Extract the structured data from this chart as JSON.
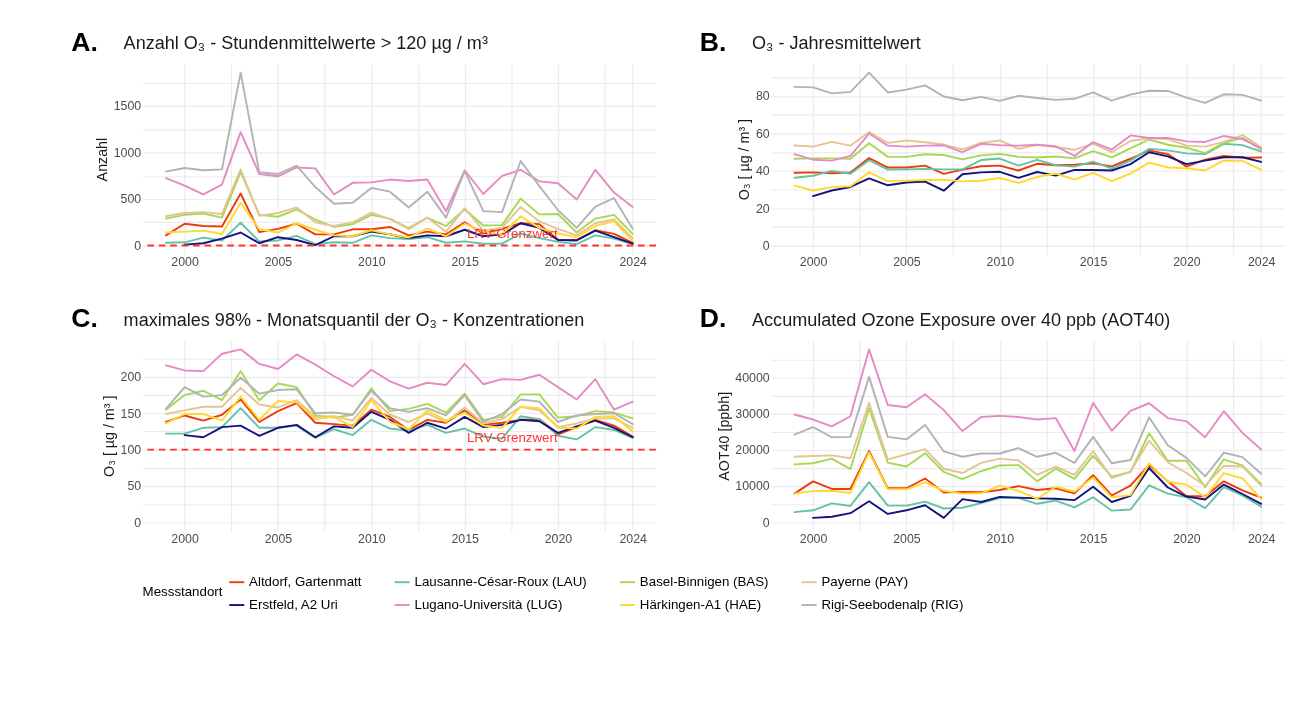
{
  "chart_data": [
    {
      "type": "line",
      "title": "Anzahl O₃ - Stundenmittelwerte > 120 µg / m³",
      "ylabel": "Anzahl",
      "annotations": [
        "A."
      ],
      "grid": true,
      "legend": "bottom",
      "legend_title": "Messstandort",
      "xlim": [
        1997.75,
        2025.25
      ],
      "xticks": [
        2000,
        {
          "value": 2002.5,
          "label": null
        },
        2005,
        {
          "value": 2007.5,
          "label": null
        },
        2010,
        {
          "value": 2012.5,
          "label": null
        },
        2015,
        {
          "value": 2017.5,
          "label": null
        },
        2020,
        {
          "value": 2022.5,
          "label": null
        },
        2024
      ],
      "ylim": [
        -93,
        1953
      ],
      "yticks": [
        0,
        {
          "value": 250,
          "label": null
        },
        500,
        {
          "value": 750,
          "label": null
        },
        1000,
        {
          "value": 1250,
          "label": null
        },
        1500,
        {
          "value": 1750,
          "label": null
        }
      ],
      "ref_lines": [
        {
          "axis": "y",
          "value": 0,
          "label": "LRV-Grenzwert",
          "color": "#ff3333",
          "line_style": "dashed"
        }
      ],
      "x": [
        1999,
        2000,
        2001,
        2002,
        2003,
        2004,
        2005,
        2006,
        2007,
        2008,
        2009,
        2010,
        2011,
        2012,
        2013,
        2014,
        2015,
        2016,
        2017,
        2018,
        2019,
        2020,
        2021,
        2022,
        2023,
        2024
      ],
      "series": [
        {
          "name": "Altdorf, Gartenmatt",
          "color": "#ee3b0b",
          "values": [
            110,
            235,
            210,
            205,
            560,
            145,
            180,
            235,
            120,
            120,
            175,
            175,
            200,
            110,
            150,
            120,
            250,
            130,
            180,
            240,
            230,
            60,
            60,
            165,
            125,
            30
          ]
        },
        {
          "name": "Lausanne-César-Roux (LAU)",
          "color": "#66c2a5",
          "values": [
            30,
            35,
            85,
            55,
            245,
            45,
            55,
            105,
            15,
            35,
            30,
            110,
            80,
            70,
            90,
            30,
            45,
            20,
            20,
            130,
            80,
            40,
            15,
            110,
            75,
            15
          ]
        },
        {
          "name": "Basel-Binnigen (BAS)",
          "color": "#a6d854",
          "values": [
            290,
            330,
            345,
            300,
            790,
            330,
            310,
            390,
            280,
            200,
            230,
            330,
            290,
            180,
            300,
            210,
            390,
            215,
            220,
            505,
            335,
            340,
            140,
            290,
            330,
            125
          ]
        },
        {
          "name": "Payerne (PAY)",
          "color": "#e5c494",
          "values": [
            315,
            350,
            360,
            340,
            820,
            320,
            350,
            410,
            250,
            210,
            250,
            355,
            285,
            190,
            300,
            150,
            400,
            160,
            190,
            415,
            260,
            180,
            110,
            240,
            280,
            80
          ]
        },
        {
          "name": "Erstfeld, A2 Uri",
          "color": "#14147f",
          "values": [
            null,
            10,
            25,
            75,
            140,
            25,
            90,
            60,
            5,
            100,
            100,
            150,
            120,
            80,
            110,
            100,
            170,
            100,
            120,
            240,
            190,
            60,
            55,
            160,
            90,
            20
          ]
        },
        {
          "name": "Lugano-Università (LUG)",
          "color": "#e78ac3",
          "values": [
            725,
            645,
            550,
            655,
            1220,
            770,
            745,
            840,
            830,
            550,
            675,
            680,
            710,
            695,
            710,
            370,
            810,
            555,
            750,
            815,
            690,
            670,
            495,
            815,
            570,
            415
          ]
        },
        {
          "name": "Härkingen-A1 (HAE)",
          "color": "#ffd92f",
          "values": [
            140,
            150,
            160,
            125,
            460,
            175,
            140,
            240,
            170,
            110,
            100,
            165,
            120,
            85,
            185,
            100,
            235,
            150,
            120,
            315,
            190,
            130,
            90,
            210,
            260,
            50
          ]
        },
        {
          "name": "Rigi-Seebodenalp (RIG)",
          "color": "#b3b3b3",
          "values": [
            795,
            835,
            810,
            820,
            1860,
            790,
            770,
            860,
            630,
            450,
            460,
            620,
            580,
            410,
            580,
            300,
            800,
            370,
            360,
            910,
            640,
            380,
            190,
            420,
            510,
            180
          ]
        }
      ]
    },
    {
      "type": "line",
      "title": "O₃ - Jahresmittelwert",
      "ylabel": "O₃ [ µg / m³ ]",
      "annotations": [
        "B."
      ],
      "grid": true,
      "xlim": [
        1997.75,
        2025.25
      ],
      "xticks": [
        2000,
        {
          "value": 2002.5,
          "label": null
        },
        2005,
        {
          "value": 2007.5,
          "label": null
        },
        2010,
        {
          "value": 2012.5,
          "label": null
        },
        2015,
        {
          "value": 2017.5,
          "label": null
        },
        2020,
        {
          "value": 2022.5,
          "label": null
        },
        2024
      ],
      "ylim": [
        -4.6,
        97.2
      ],
      "yticks": [
        0,
        {
          "value": 10,
          "label": null
        },
        20,
        {
          "value": 30,
          "label": null
        },
        40,
        {
          "value": 50,
          "label": null
        },
        60,
        {
          "value": 70,
          "label": null
        },
        80,
        {
          "value": 90,
          "label": null
        }
      ],
      "x": [
        1999,
        2000,
        2001,
        2002,
        2003,
        2004,
        2005,
        2006,
        2007,
        2008,
        2009,
        2010,
        2011,
        2012,
        2013,
        2014,
        2015,
        2016,
        2017,
        2018,
        2019,
        2020,
        2021,
        2022,
        2023,
        2024
      ],
      "series": [
        {
          "name": "Altdorf, Gartenmatt",
          "color": "#ee3b0b",
          "values": [
            39,
            39.2,
            38.7,
            39.1,
            46.9,
            41.8,
            41.8,
            42.8,
            38.4,
            40.7,
            42.5,
            42.8,
            40.2,
            43.8,
            43,
            43.3,
            44,
            42.4,
            46.5,
            51,
            49,
            42.3,
            46,
            48,
            47.1,
            47.2
          ]
        },
        {
          "name": "Lausanne-César-Roux (LAU)",
          "color": "#66c2a5",
          "values": [
            36.3,
            37.4,
            40,
            38.5,
            45.7,
            40.7,
            40.8,
            41.1,
            40.8,
            40.8,
            45.8,
            46.6,
            42.8,
            45.9,
            43,
            42.3,
            45,
            41.2,
            45.5,
            51.8,
            51,
            49.4,
            49,
            54.5,
            53.8,
            50.3
          ]
        },
        {
          "name": "Basel-Binnigen (BAS)",
          "color": "#a6d854",
          "values": [
            46.5,
            46.7,
            46.7,
            46.5,
            54.8,
            47.5,
            47.5,
            48.9,
            48.5,
            46.2,
            48.3,
            49.1,
            47.5,
            47.2,
            47.7,
            46.7,
            50.6,
            47.2,
            52,
            56.8,
            54,
            52.4,
            49.5,
            55,
            57.7,
            51.5
          ]
        },
        {
          "name": "Payerne (PAY)",
          "color": "#e5c494",
          "values": [
            53.6,
            53,
            55.5,
            53.5,
            60.8,
            55,
            56.3,
            55.3,
            54.1,
            51.5,
            55,
            56.3,
            51.8,
            54,
            52.8,
            51.3,
            54.6,
            50,
            56,
            57.5,
            57,
            53.5,
            53,
            55.5,
            59.2,
            52.6
          ]
        },
        {
          "name": "Erstfeld, A2 Uri",
          "color": "#14147f",
          "values": [
            null,
            26.5,
            29.5,
            31.4,
            36,
            32.3,
            33.8,
            34.3,
            29.4,
            38.2,
            39.2,
            39.5,
            36.3,
            39.4,
            37.5,
            40.5,
            40.5,
            40.2,
            43.6,
            50,
            47.8,
            43.6,
            45.5,
            47.3,
            47.3,
            44.8
          ]
        },
        {
          "name": "Lugano-Università (LUG)",
          "color": "#e78ac3",
          "values": [
            49,
            46,
            45.5,
            48,
            60,
            53.5,
            53,
            53.5,
            53.7,
            50,
            54.5,
            53.8,
            53.5,
            54,
            53.2,
            48,
            55.4,
            51.4,
            59,
            57.6,
            57.7,
            55.8,
            55.5,
            58.7,
            57,
            52
          ]
        },
        {
          "name": "Härkingen-A1 (HAE)",
          "color": "#ffd92f",
          "values": [
            32.1,
            29.5,
            31.3,
            31.8,
            39.2,
            34.5,
            34.8,
            35.1,
            35.3,
            34.4,
            34.7,
            36.2,
            33.6,
            36.7,
            38.6,
            35.3,
            39,
            34.5,
            38.5,
            44.4,
            41.8,
            41.4,
            40.2,
            45.6,
            45.4,
            40.6
          ]
        },
        {
          "name": "Rigi-Seebodenalp (RIG)",
          "color": "#b3b3b3",
          "values": [
            85,
            84.7,
            81.5,
            82.3,
            92.6,
            82,
            83.5,
            85.8,
            79.8,
            77.8,
            79.6,
            77.5,
            80.2,
            79,
            78,
            78.6,
            82,
            77.6,
            80.8,
            82.9,
            82.8,
            79.2,
            76.4,
            81,
            80.7,
            77.6
          ]
        }
      ]
    },
    {
      "type": "line",
      "title": "maximales 98% - Monatsquantil der O₃ - Konzentrationen",
      "ylabel": "O₃ [ µg / m³ ]",
      "annotations": [
        "C."
      ],
      "grid": true,
      "xlim": [
        1997.75,
        2025.25
      ],
      "xticks": [
        2000,
        {
          "value": 2002.5,
          "label": null
        },
        2005,
        {
          "value": 2007.5,
          "label": null
        },
        2010,
        {
          "value": 2012.5,
          "label": null
        },
        2015,
        {
          "value": 2017.5,
          "label": null
        },
        2020,
        {
          "value": 2022.5,
          "label": null
        },
        2024
      ],
      "ylim": [
        -11.9,
        249.9
      ],
      "yticks": [
        0,
        {
          "value": 25,
          "label": null
        },
        50,
        {
          "value": 75,
          "label": null
        },
        100,
        {
          "value": 125,
          "label": null
        },
        150,
        {
          "value": 175,
          "label": null
        },
        200,
        {
          "value": 225,
          "label": null
        }
      ],
      "ref_lines": [
        {
          "axis": "y",
          "value": 100,
          "label": "LRV-Grenzwert",
          "color": "#ff3333",
          "line_style": "dashed"
        }
      ],
      "x": [
        1999,
        2000,
        2001,
        2002,
        2003,
        2004,
        2005,
        2006,
        2007,
        2008,
        2009,
        2010,
        2011,
        2012,
        2013,
        2014,
        2015,
        2016,
        2017,
        2018,
        2019,
        2020,
        2021,
        2022,
        2023,
        2024
      ],
      "series": [
        {
          "name": "Altdorf, Gartenmatt",
          "color": "#ee3b0b",
          "values": [
            138,
            147,
            140,
            148,
            169,
            138,
            153,
            164,
            137,
            135,
            133,
            155,
            145,
            127,
            141,
            137,
            154,
            134,
            137,
            141,
            142,
            121,
            131,
            141,
            133,
            118
          ]
        },
        {
          "name": "Lausanne-César-Roux (LAU)",
          "color": "#66c2a5",
          "values": [
            122,
            122,
            130,
            131,
            157,
            130,
            130,
            133,
            116,
            128,
            120,
            141,
            129,
            126,
            134,
            123,
            129,
            118,
            115,
            146,
            142,
            119,
            114,
            131,
            127,
            116
          ]
        },
        {
          "name": "Basel-Binnigen (BAS)",
          "color": "#a6d854",
          "values": [
            155,
            175,
            181,
            168,
            208,
            168,
            191,
            186,
            147,
            144,
            148,
            184,
            153,
            156,
            163,
            151,
            177,
            141,
            145,
            176,
            176,
            144,
            146,
            153,
            151,
            143
          ]
        },
        {
          "name": "Payerne (PAY)",
          "color": "#e5c494",
          "values": [
            149,
            154,
            159,
            159,
            185,
            162,
            158,
            168,
            145,
            146,
            140,
            171,
            148,
            138,
            150,
            138,
            158,
            136,
            142,
            159,
            154,
            131,
            136,
            143,
            143,
            130
          ]
        },
        {
          "name": "Erstfeld, A2 Uri",
          "color": "#14147f",
          "values": [
            null,
            120,
            117,
            131,
            133,
            119,
            130,
            134,
            117,
            132,
            130,
            152,
            141,
            123,
            137,
            129,
            145,
            131,
            134,
            141,
            139,
            123,
            132,
            140,
            130,
            117
          ]
        },
        {
          "name": "Lugano-Università (LUG)",
          "color": "#e78ac3",
          "values": [
            216,
            209,
            208,
            232,
            238,
            218,
            211,
            231,
            217,
            201,
            187,
            210,
            194,
            184,
            192,
            189,
            218,
            190,
            197,
            196,
            203,
            186,
            169,
            197,
            155,
            166
          ]
        },
        {
          "name": "Härkingen-A1 (HAE)",
          "color": "#ffd92f",
          "values": [
            136,
            149,
            149,
            140,
            173,
            141,
            167,
            165,
            142,
            145,
            131,
            168,
            138,
            128,
            154,
            140,
            151,
            133,
            130,
            159,
            157,
            130,
            129,
            145,
            146,
            125
          ]
        },
        {
          "name": "Rigi-Seebodenalp (RIG)",
          "color": "#b3b3b3",
          "values": [
            156,
            186,
            173,
            175,
            199,
            177,
            182,
            183,
            150,
            151,
            148,
            181,
            157,
            152,
            157,
            147,
            175,
            138,
            149,
            169,
            166,
            138,
            147,
            149,
            150,
            135
          ]
        }
      ]
    },
    {
      "type": "line",
      "title": "Accumulated Ozone Exposure over 40 ppb (AOT40)",
      "ylabel": "AOT40 [ppbh]",
      "annotations": [
        "D."
      ],
      "grid": true,
      "xlim": [
        1997.75,
        2025.25
      ],
      "xticks": [
        2000,
        {
          "value": 2002.5,
          "label": null
        },
        2005,
        {
          "value": 2007.5,
          "label": null
        },
        2010,
        {
          "value": 2012.5,
          "label": null
        },
        2015,
        {
          "value": 2017.5,
          "label": null
        },
        2020,
        {
          "value": 2022.5,
          "label": null
        },
        2024
      ],
      "ylim": [
        -2390,
        50190
      ],
      "yticks": [
        0,
        {
          "value": 5000,
          "label": null
        },
        10000,
        {
          "value": 15000,
          "label": null
        },
        20000,
        {
          "value": 25000,
          "label": null
        },
        30000,
        {
          "value": 35000,
          "label": null
        },
        40000,
        {
          "value": 45000,
          "label": null
        }
      ],
      "x": [
        1999,
        2000,
        2001,
        2002,
        2003,
        2004,
        2005,
        2006,
        2007,
        2008,
        2009,
        2010,
        2011,
        2012,
        2013,
        2014,
        2015,
        2016,
        2017,
        2018,
        2019,
        2020,
        2021,
        2022,
        2023,
        2024
      ],
      "series": [
        {
          "name": "Altdorf, Gartenmatt",
          "color": "#ee3b0b",
          "values": [
            7900,
            11300,
            9200,
            9200,
            19700,
            9400,
            9400,
            12100,
            8200,
            8400,
            8300,
            8900,
            10000,
            8900,
            9400,
            8000,
            13000,
            7400,
            10100,
            15900,
            11300,
            7200,
            7200,
            11300,
            8800,
            6800
          ]
        },
        {
          "name": "Lausanne-César-Roux (LAU)",
          "color": "#66c2a5",
          "values": [
            2800,
            3300,
            5200,
            4500,
            11100,
            4600,
            4600,
            5700,
            3800,
            4000,
            5300,
            6700,
            6700,
            5100,
            6000,
            4100,
            6900,
            3200,
            3500,
            10200,
            7900,
            6900,
            3900,
            9700,
            7400,
            4300
          ]
        },
        {
          "name": "Basel-Binnigen (BAS)",
          "color": "#a6d854",
          "values": [
            16000,
            16300,
            17600,
            14700,
            31500,
            16500,
            15400,
            19100,
            13900,
            11900,
            14100,
            15700,
            15800,
            11300,
            14800,
            12000,
            18400,
            12600,
            13900,
            24600,
            17000,
            17000,
            9700,
            17400,
            15700,
            10500
          ]
        },
        {
          "name": "Payerne (PAY)",
          "color": "#e5c494",
          "values": [
            18100,
            18300,
            18500,
            17700,
            33000,
            17400,
            18800,
            20200,
            14800,
            13600,
            16400,
            17600,
            17100,
            13100,
            15400,
            13100,
            19700,
            12200,
            14000,
            22500,
            16600,
            13600,
            10100,
            15600,
            15400,
            10100
          ]
        },
        {
          "name": "Erstfeld, A2 Uri",
          "color": "#14147f",
          "values": [
            null,
            1200,
            1500,
            2500,
            5800,
            2300,
            3300,
            4700,
            1200,
            6400,
            5600,
            7000,
            6800,
            6600,
            6500,
            6100,
            9800,
            5600,
            7300,
            15000,
            9600,
            7100,
            6300,
            10400,
            7800,
            5100
          ]
        },
        {
          "name": "Lugano-Università (LUG)",
          "color": "#e78ac3",
          "values": [
            29800,
            28400,
            26500,
            29300,
            47800,
            32400,
            31800,
            35400,
            31000,
            25200,
            29100,
            29400,
            29100,
            28400,
            28800,
            19700,
            33000,
            25300,
            30800,
            32900,
            28800,
            27900,
            23500,
            30700,
            24700,
            20100
          ]
        },
        {
          "name": "Härkingen-A1 (HAE)",
          "color": "#ffd92f",
          "values": [
            7900,
            8600,
            8700,
            8100,
            19300,
            9200,
            9100,
            11000,
            8700,
            7900,
            8000,
            10100,
            8700,
            6500,
            9800,
            8500,
            12400,
            6900,
            7500,
            16300,
            11200,
            10400,
            6900,
            13600,
            12100,
            6400
          ]
        },
        {
          "name": "Rigi-Seebodenalp (RIG)",
          "color": "#b3b3b3",
          "values": [
            24200,
            26300,
            23500,
            23600,
            40200,
            23600,
            22900,
            26900,
            19600,
            18100,
            19000,
            19000,
            20500,
            18100,
            19200,
            16400,
            23600,
            16300,
            17200,
            29000,
            21300,
            17800,
            12700,
            19200,
            18000,
            13400
          ]
        }
      ]
    }
  ]
}
